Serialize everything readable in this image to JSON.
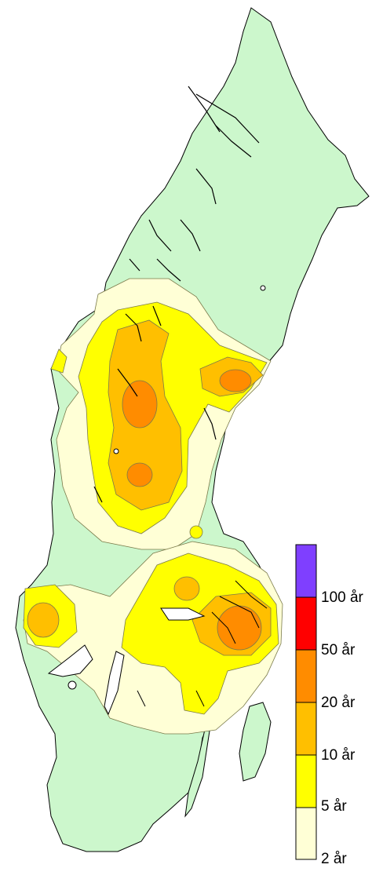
{
  "colors": {
    "land": "#ccf7cc",
    "water": "#ffffff",
    "outline": "#000000",
    "contour": "#7a7a4a"
  },
  "legend": {
    "classes": [
      {
        "range": "2-5 år",
        "color": "#ffffd6"
      },
      {
        "range": "5-10 år",
        "color": "#ffff00"
      },
      {
        "range": "10-20 år",
        "color": "#ffbf00"
      },
      {
        "range": "20-50 år",
        "color": "#ff8c00"
      },
      {
        "range": "50-100 år",
        "color": "#ff0000"
      },
      {
        "range": ">100 år",
        "color": "#7f3fff"
      }
    ],
    "labels": [
      "100 år",
      "50 år",
      "20 år",
      "10 år",
      "5 år",
      "2 år"
    ]
  }
}
